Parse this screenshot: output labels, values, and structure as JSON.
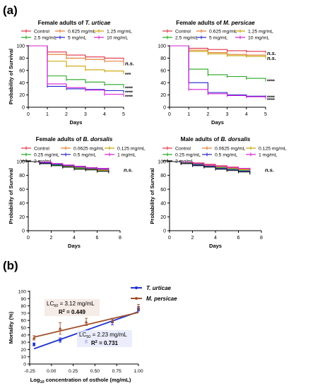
{
  "panel_labels": {
    "a": "(a)",
    "b": "(b)"
  },
  "chart_data": [
    {
      "type": "line",
      "title_prefix": "Female adults of",
      "title_species": "T. urticae",
      "xlabel": "Days",
      "ylabel": "Probability of Survival",
      "xlim": [
        0,
        5
      ],
      "ylim": [
        0,
        100
      ],
      "xticks": [
        0,
        1,
        2,
        3,
        4,
        5
      ],
      "yticks": [
        0,
        20,
        40,
        60,
        80,
        100
      ],
      "x": [
        0,
        1,
        2,
        3,
        4,
        5
      ],
      "series": [
        {
          "name": "Control",
          "color": "#e0334a",
          "values": [
            100,
            90,
            85,
            82,
            80,
            78
          ]
        },
        {
          "name": "0.625 mg/mL",
          "color": "#e07a2e",
          "values": [
            100,
            86,
            80,
            78,
            75,
            70
          ]
        },
        {
          "name": "1.25 mg/mL",
          "color": "#c9a400",
          "values": [
            100,
            75,
            67,
            61,
            59,
            56
          ]
        },
        {
          "name": "2.5 mg/mL",
          "color": "#23a623",
          "values": [
            100,
            51,
            45,
            41,
            37,
            33
          ]
        },
        {
          "name": "5 mg/mL",
          "color": "#2222cc",
          "values": [
            100,
            34,
            30,
            29,
            27,
            25
          ]
        },
        {
          "name": "10 mg/mL",
          "color": "#d61fd6",
          "values": [
            100,
            38,
            32,
            28,
            21,
            19
          ]
        }
      ],
      "annotations": [
        {
          "text": "n.s.",
          "color": "#e07a2e",
          "y": 71
        },
        {
          "text": "***",
          "color": "#c9a400",
          "y": 55
        },
        {
          "text": "****",
          "color": "#23a623",
          "y": 33
        },
        {
          "text": "****",
          "color": "#2222cc",
          "y": 26
        },
        {
          "text": "****",
          "color": "#d61fd6",
          "y": 19
        }
      ]
    },
    {
      "type": "line",
      "title_prefix": "Female adults of",
      "title_species": "M. persicae",
      "xlabel": "Days",
      "ylabel": "",
      "xlim": [
        0,
        5
      ],
      "ylim": [
        0,
        100
      ],
      "xticks": [
        0,
        1,
        2,
        3,
        4,
        5
      ],
      "yticks": [
        0,
        20,
        40,
        60,
        80,
        100
      ],
      "x": [
        0,
        1,
        2,
        3,
        4,
        5
      ],
      "series": [
        {
          "name": "Control",
          "color": "#e0334a",
          "values": [
            100,
            96,
            94,
            92,
            91,
            90
          ]
        },
        {
          "name": "0.625 mg/mL",
          "color": "#e07a2e",
          "values": [
            100,
            93,
            89,
            86,
            85,
            83
          ]
        },
        {
          "name": "1.25 mg/mL",
          "color": "#c9a400",
          "values": [
            100,
            91,
            87,
            84,
            83,
            81
          ]
        },
        {
          "name": "2.5 mg/mL",
          "color": "#23a623",
          "values": [
            100,
            62,
            53,
            50,
            47,
            44
          ]
        },
        {
          "name": "5 mg/mL",
          "color": "#2222cc",
          "values": [
            100,
            40,
            24,
            20,
            18,
            17
          ]
        },
        {
          "name": "10 mg/mL",
          "color": "#d61fd6",
          "values": [
            100,
            29,
            22,
            19,
            17,
            15
          ]
        }
      ],
      "annotations": [
        {
          "text": "n.s.",
          "color": "#e07a2e",
          "y": 88
        },
        {
          "text": "n.s.",
          "color": "#c9a400",
          "y": 80
        },
        {
          "text": "****",
          "color": "#23a623",
          "y": 44
        },
        {
          "text": "****",
          "color": "#2222cc",
          "y": 18
        },
        {
          "text": "****",
          "color": "#d61fd6",
          "y": 14
        }
      ]
    },
    {
      "type": "line",
      "title_prefix": "Female adults of",
      "title_species": "B. dorsalis",
      "xlabel": "Days",
      "ylabel": "Probability of Survival",
      "xlim": [
        0,
        8
      ],
      "ylim": [
        0,
        100
      ],
      "xticks": [
        0,
        2,
        4,
        6,
        8
      ],
      "yticks": [
        0,
        20,
        40,
        60,
        80,
        100
      ],
      "x": [
        0,
        1,
        2,
        3,
        4,
        5,
        6,
        7
      ],
      "series": [
        {
          "name": "Control",
          "color": "#e0334a",
          "values": [
            100,
            99,
            97,
            95,
            93,
            91,
            90,
            89
          ]
        },
        {
          "name": "0.0625 mg/mL",
          "color": "#e07a2e",
          "values": [
            100,
            98,
            96,
            94,
            92,
            90,
            88,
            87
          ]
        },
        {
          "name": "0.125 mg/mL",
          "color": "#c9a400",
          "values": [
            100,
            98,
            95,
            93,
            91,
            89,
            87,
            86
          ]
        },
        {
          "name": "0.25 mg/mL",
          "color": "#23a623",
          "values": [
            100,
            97,
            95,
            92,
            90,
            88,
            86,
            85
          ]
        },
        {
          "name": "0.5 mg/mL",
          "color": "#2222cc",
          "values": [
            100,
            98,
            96,
            94,
            92,
            90,
            89,
            88
          ]
        },
        {
          "name": "1 mg/mL",
          "color": "#d61fd6",
          "values": [
            100,
            99,
            97,
            95,
            93,
            91,
            90,
            89
          ]
        },
        {
          "name": "2 mg/mL",
          "color": "#111111",
          "values": [
            100,
            97,
            94,
            92,
            89,
            88,
            86,
            85
          ]
        }
      ],
      "annotations": [
        {
          "text": "n.s.",
          "color": "#000000",
          "y": 88
        }
      ]
    },
    {
      "type": "line",
      "title_prefix": "Male adults of",
      "title_species": "B. dorsalis",
      "xlabel": "Days",
      "ylabel": "Probability of Survival",
      "xlim": [
        0,
        8
      ],
      "ylim": [
        0,
        100
      ],
      "xticks": [
        0,
        2,
        4,
        6,
        8
      ],
      "yticks": [
        0,
        20,
        40,
        60,
        80,
        100
      ],
      "x": [
        0,
        1,
        2,
        3,
        4,
        5,
        6,
        7
      ],
      "series": [
        {
          "name": "Control",
          "color": "#e0334a",
          "values": [
            100,
            99,
            98,
            96,
            94,
            92,
            90,
            89
          ]
        },
        {
          "name": "0.0625 mg/mL",
          "color": "#e07a2e",
          "values": [
            100,
            98,
            97,
            95,
            93,
            91,
            89,
            87
          ]
        },
        {
          "name": "0.125 mg/mL",
          "color": "#c9a400",
          "values": [
            100,
            98,
            96,
            94,
            92,
            90,
            88,
            86
          ]
        },
        {
          "name": "0.25 mg/mL",
          "color": "#23a623",
          "values": [
            100,
            98,
            96,
            93,
            91,
            89,
            87,
            85
          ]
        },
        {
          "name": "0.5 mg/mL",
          "color": "#2222cc",
          "values": [
            100,
            97,
            95,
            93,
            90,
            88,
            86,
            84
          ]
        },
        {
          "name": "1 mg/mL",
          "color": "#d61fd6",
          "values": [
            100,
            99,
            97,
            95,
            93,
            91,
            90,
            88
          ]
        },
        {
          "name": "2 mg/mL",
          "color": "#111111",
          "values": [
            100,
            97,
            94,
            92,
            89,
            87,
            85,
            83
          ]
        }
      ],
      "annotations": [
        {
          "text": "n.s.",
          "color": "#000000",
          "y": 88
        }
      ]
    },
    {
      "type": "scatter",
      "xlabel_prefix": "Log",
      "xlabel_sub": "10",
      "xlabel_suffix": " concentration of osthole (mg/mL)",
      "ylabel": "Mortality (%)",
      "xlim": [
        -0.25,
        1.0
      ],
      "ylim": [
        0,
        100
      ],
      "xticks": [
        -0.25,
        0.0,
        0.25,
        0.5,
        0.75,
        1.0
      ],
      "xtick_labels": [
        "-0.25",
        "0.00",
        "0.25",
        "0.50",
        "0.75",
        "1.00"
      ],
      "yticks": [
        0,
        10,
        20,
        30,
        40,
        50,
        60,
        70,
        80,
        90,
        100
      ],
      "series": [
        {
          "name": "T. urticae",
          "color": "#2233cc",
          "points": [
            {
              "x": -0.2,
              "y": 27,
              "err": 2
            },
            {
              "x": 0.1,
              "y": 33,
              "err": 3
            },
            {
              "x": 0.4,
              "y": 31,
              "err": 2
            },
            {
              "x": 0.7,
              "y": 58,
              "err": 4
            },
            {
              "x": 1.0,
              "y": 76,
              "err": 3
            }
          ],
          "fit": [
            [
              -0.2,
              21
            ],
            [
              1.0,
              72
            ]
          ],
          "lc50_text": "2.23 mg/mL",
          "r2_text": "0.731"
        },
        {
          "name": "M. persicae",
          "color": "#a0522d",
          "points": [
            {
              "x": -0.2,
              "y": 36,
              "err": 3
            },
            {
              "x": 0.1,
              "y": 49,
              "err": 8
            },
            {
              "x": 0.4,
              "y": 58,
              "err": 5
            },
            {
              "x": 0.7,
              "y": 60,
              "err": 3
            },
            {
              "x": 1.0,
              "y": 78,
              "err": 4
            }
          ],
          "fit": [
            [
              -0.2,
              37
            ],
            [
              1.0,
              71
            ]
          ],
          "lc50_text": "3.12 mg/mL",
          "r2_text": "0.449"
        }
      ]
    }
  ]
}
